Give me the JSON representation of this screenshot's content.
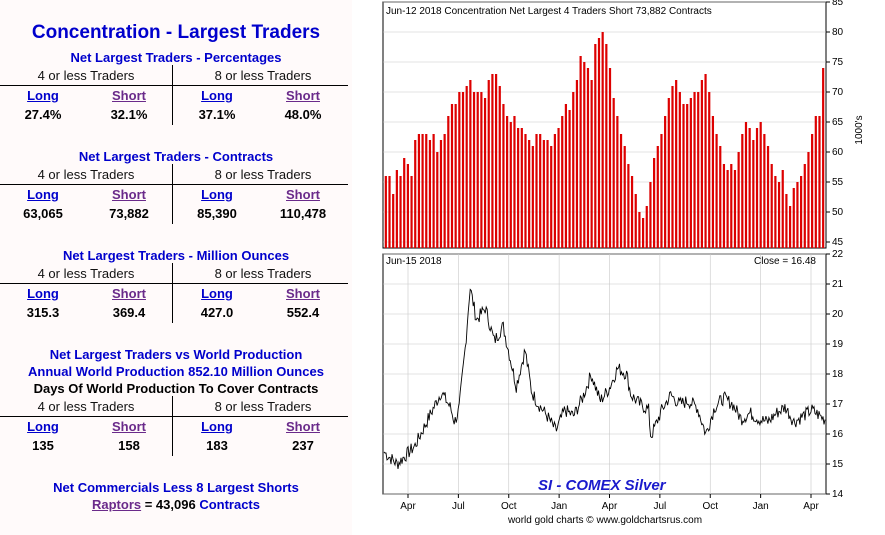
{
  "left": {
    "title": "Concentration - Largest Traders",
    "percentages": {
      "title": "Net Largest Traders - Percentages",
      "group_left": "4 or less Traders",
      "group_right": "8 or less Traders",
      "labels": [
        "Long",
        "Short",
        "Long",
        "Short"
      ],
      "values": [
        "27.4%",
        "32.1%",
        "37.1%",
        "48.0%"
      ]
    },
    "contracts": {
      "title": "Net Largest Traders - Contracts",
      "group_left": "4 or less Traders",
      "group_right": "8 or less Traders",
      "labels": [
        "Long",
        "Short",
        "Long",
        "Short"
      ],
      "values": [
        "63,065",
        "73,882",
        "85,390",
        "110,478"
      ]
    },
    "ounces": {
      "title": "Net Largest Traders - Million Ounces",
      "group_left": "4 or less Traders",
      "group_right": "8 or less Traders",
      "labels": [
        "Long",
        "Short",
        "Long",
        "Short"
      ],
      "values": [
        "315.3",
        "369.4",
        "427.0",
        "552.4"
      ]
    },
    "production": {
      "title1": "Net Largest Traders vs World Production",
      "title2": "Annual World Production 852.10 Million Ounces",
      "title3": "Days Of World Production To Cover Contracts",
      "group_left": "4 or less Traders",
      "group_right": "8 or less Traders",
      "labels": [
        "Long",
        "Short",
        "Long",
        "Short"
      ],
      "values": [
        "135",
        "158",
        "183",
        "237"
      ]
    },
    "footer": {
      "line1": "Net Commercials Less 8 Largest Shorts",
      "raptors_label": "Raptors",
      "equals": " = 43,096 ",
      "contracts_word": "Contracts"
    }
  },
  "chart_data": [
    {
      "type": "bar",
      "title": "Jun-12  2018   Concentration Net Largest 4 Traders Short 73,882 Contracts",
      "ylabel": "1000's",
      "ylim": [
        44,
        85
      ],
      "yticks": [
        45,
        50,
        55,
        60,
        65,
        70,
        75,
        80,
        85
      ],
      "grid": true,
      "color": "#dd0000",
      "values": [
        56,
        56,
        53,
        57,
        56,
        59,
        58,
        56,
        62,
        63,
        63,
        63,
        62,
        63,
        60,
        62,
        63,
        66,
        68,
        68,
        70,
        70,
        71,
        72,
        70,
        70,
        70,
        69,
        72,
        73,
        73,
        71,
        68,
        66,
        65,
        66,
        64,
        64,
        63,
        62,
        61,
        63,
        63,
        62,
        62,
        61,
        63,
        64,
        66,
        68,
        67,
        70,
        72,
        76,
        75,
        74,
        72,
        78,
        79,
        80,
        78,
        74,
        69,
        66,
        63,
        61,
        58,
        56,
        53,
        50,
        49,
        51,
        55,
        59,
        61,
        63,
        66,
        69,
        71,
        72,
        70,
        68,
        68,
        69,
        70,
        70,
        72,
        73,
        70,
        66,
        63,
        61,
        58,
        57,
        58,
        57,
        60,
        63,
        65,
        64,
        62,
        64,
        65,
        63,
        61,
        58,
        56,
        55,
        57,
        53,
        51,
        54,
        55,
        56,
        58,
        60,
        63,
        66,
        66,
        74
      ]
    },
    {
      "type": "line",
      "title": "Jun-15  2018",
      "annotation": "Close = 16.48",
      "series_label": "SI  -  COMEX Silver",
      "ylim": [
        14,
        22
      ],
      "yticks": [
        14,
        15,
        16,
        17,
        18,
        19,
        20,
        21,
        22
      ],
      "x_ticks": [
        "Apr",
        "Jul",
        "Oct",
        "Jan",
        "Apr",
        "Jul",
        "Oct",
        "Jan",
        "Apr"
      ],
      "grid": true,
      "color": "#000000",
      "anchors": [
        [
          0,
          15.4
        ],
        [
          0.03,
          15.0
        ],
        [
          0.05,
          15.3
        ],
        [
          0.07,
          15.6
        ],
        [
          0.09,
          16.2
        ],
        [
          0.11,
          16.8
        ],
        [
          0.13,
          17.4
        ],
        [
          0.15,
          16.9
        ],
        [
          0.16,
          16.4
        ],
        [
          0.17,
          16.8
        ],
        [
          0.185,
          19.0
        ],
        [
          0.195,
          20.9
        ],
        [
          0.21,
          19.8
        ],
        [
          0.23,
          20.2
        ],
        [
          0.25,
          19.1
        ],
        [
          0.27,
          19.6
        ],
        [
          0.285,
          18.6
        ],
        [
          0.3,
          17.6
        ],
        [
          0.31,
          18.2
        ],
        [
          0.32,
          18.8
        ],
        [
          0.335,
          17.4
        ],
        [
          0.35,
          17.0
        ],
        [
          0.37,
          16.6
        ],
        [
          0.39,
          16.1
        ],
        [
          0.41,
          16.8
        ],
        [
          0.43,
          16.6
        ],
        [
          0.45,
          17.2
        ],
        [
          0.47,
          18.0
        ],
        [
          0.49,
          17.1
        ],
        [
          0.51,
          17.5
        ],
        [
          0.53,
          18.2
        ],
        [
          0.55,
          18.0
        ],
        [
          0.56,
          17.3
        ],
        [
          0.58,
          17.0
        ],
        [
          0.6,
          16.8
        ],
        [
          0.605,
          15.9
        ],
        [
          0.63,
          16.8
        ],
        [
          0.65,
          17.3
        ],
        [
          0.67,
          17.0
        ],
        [
          0.69,
          17.1
        ],
        [
          0.71,
          16.9
        ],
        [
          0.73,
          16.0
        ],
        [
          0.75,
          16.9
        ],
        [
          0.77,
          17.2
        ],
        [
          0.79,
          17.0
        ],
        [
          0.81,
          16.5
        ],
        [
          0.83,
          16.7
        ],
        [
          0.85,
          16.5
        ],
        [
          0.87,
          16.4
        ],
        [
          0.89,
          16.7
        ],
        [
          0.91,
          16.9
        ],
        [
          0.93,
          16.4
        ],
        [
          0.95,
          16.6
        ],
        [
          0.97,
          16.8
        ],
        [
          1.0,
          16.48
        ]
      ]
    }
  ],
  "footer_credit": "world gold charts © www.goldchartsrus.com"
}
